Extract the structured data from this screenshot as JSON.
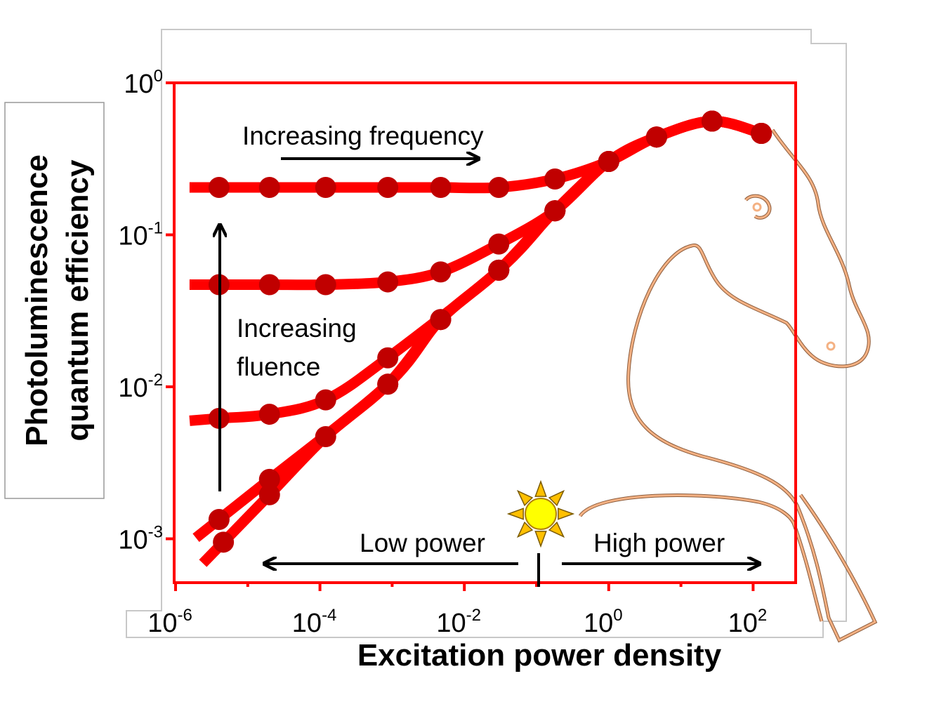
{
  "chart_data": {
    "type": "line",
    "title": "",
    "xlabel": "Excitation power density",
    "ylabel": [
      "Photoluminescence",
      "quantum efficiency"
    ],
    "x_scale": "log",
    "y_scale": "log",
    "xlim": [
      1e-06,
      300
    ],
    "ylim": [
      0.0005,
      1
    ],
    "x_ticks": [
      {
        "value": 1e-06,
        "base": "10",
        "exp": "-6"
      },
      {
        "value": 0.0001,
        "base": "10",
        "exp": "-4"
      },
      {
        "value": 0.01,
        "base": "10",
        "exp": "-2"
      },
      {
        "value": 1,
        "base": "10",
        "exp": "0"
      },
      {
        "value": 100,
        "base": "10",
        "exp": "2"
      }
    ],
    "y_ticks": [
      {
        "value": 1,
        "base": "10",
        "exp": "0"
      },
      {
        "value": 0.1,
        "base": "10",
        "exp": "-1"
      },
      {
        "value": 0.01,
        "base": "10",
        "exp": "-2"
      },
      {
        "value": 0.001,
        "base": "10",
        "exp": "-3"
      }
    ],
    "grid": false,
    "colors": {
      "line": "#ff0000",
      "marker": "#c00000",
      "frame": "#ff0000",
      "outline": "#f4b183"
    },
    "series": [
      {
        "x": [
          4e-06,
          2e-05,
          0.00012,
          0.00087,
          0.0047,
          0.03,
          0.18,
          1.0,
          4.6,
          27,
          130
        ],
        "y": [
          0.205,
          0.205,
          0.205,
          0.205,
          0.205,
          0.205,
          0.233,
          0.304,
          0.44,
          0.56,
          0.465
        ]
      },
      {
        "x": [
          4e-06,
          2e-05,
          0.00012,
          0.00087,
          0.0047,
          0.03,
          0.18,
          1.0,
          4.6,
          27,
          130
        ],
        "y": [
          0.047,
          0.047,
          0.047,
          0.049,
          0.057,
          0.087,
          0.144,
          0.304,
          0.44,
          0.56,
          0.465
        ]
      },
      {
        "x": [
          4e-06,
          2e-05,
          0.00012,
          0.00087,
          0.03,
          0.18,
          1.0,
          4.6,
          27,
          130
        ],
        "y": [
          0.0062,
          0.0066,
          0.0082,
          0.0155,
          0.0585,
          0.144,
          0.304,
          0.44,
          0.56,
          0.465
        ]
      },
      {
        "x": [
          4e-06,
          2e-05,
          0.00087,
          0.0047,
          0.03,
          0.18,
          1.0,
          4.6,
          27,
          130
        ],
        "y": [
          0.00134,
          0.00246,
          0.0104,
          0.0277,
          0.0585,
          0.144,
          0.304,
          0.44,
          0.56,
          0.465
        ]
      },
      {
        "x": [
          4.6e-06,
          2e-05,
          0.00012,
          0.00087,
          0.0047,
          0.03,
          0.18,
          1.0,
          4.6,
          27,
          130
        ],
        "y": [
          0.00095,
          0.00195,
          0.0047,
          0.0104,
          0.0277,
          0.0585,
          0.144,
          0.304,
          0.44,
          0.56,
          0.465
        ]
      }
    ],
    "annotations": {
      "frequency": "Increasing frequency",
      "fluence_line1": "Increasing",
      "fluence_line2": "fluence",
      "low_power": "Low power",
      "high_power": "High power"
    },
    "icons": {
      "sun": "sun-icon",
      "horse_outline": "horse-outline-drawing"
    }
  }
}
